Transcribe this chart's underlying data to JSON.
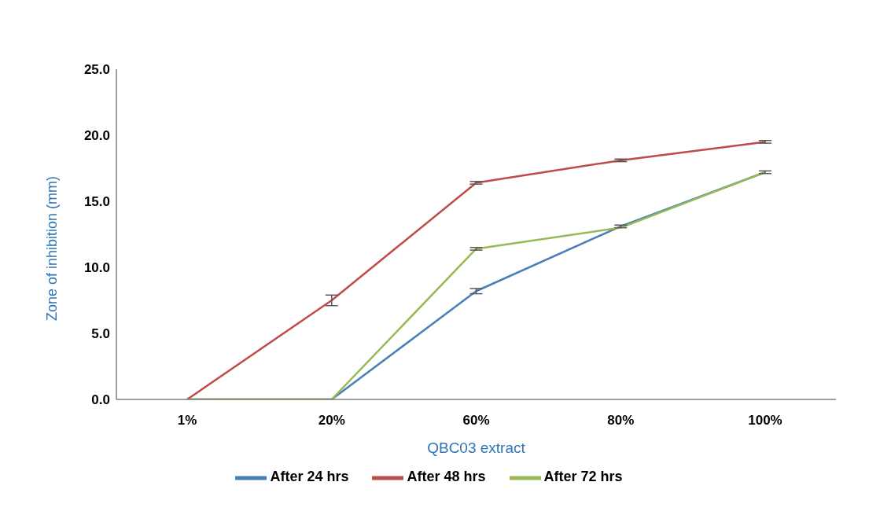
{
  "chart_data": {
    "type": "line",
    "xlabel": "QBC03 extract",
    "ylabel": "Zone of inhibition (mm)",
    "categories": [
      "1%",
      "20%",
      "60%",
      "80%",
      "100%"
    ],
    "series": [
      {
        "name": "After 24 hrs",
        "color": "#4a7ebb",
        "values": [
          0,
          0,
          8.2,
          13.1,
          17.2
        ],
        "errors": [
          null,
          null,
          0.2,
          0.1,
          null
        ]
      },
      {
        "name": "After 48 hrs",
        "color": "#be4b48",
        "values": [
          0,
          7.5,
          16.4,
          18.1,
          19.5
        ],
        "errors": [
          null,
          0.4,
          0.1,
          0.1,
          0.1
        ]
      },
      {
        "name": "After 72 hrs",
        "color": "#98b954",
        "values": [
          0,
          0,
          11.4,
          13.0,
          17.2
        ],
        "errors": [
          null,
          null,
          0.1,
          null,
          0.1
        ]
      }
    ],
    "ylim": [
      0,
      25
    ],
    "yticks": [
      {
        "value": 0,
        "label": "0.0"
      },
      {
        "value": 5,
        "label": "5.0"
      },
      {
        "value": 10,
        "label": "10.0"
      },
      {
        "value": 15,
        "label": "15.0"
      },
      {
        "value": 20,
        "label": "20.0"
      },
      {
        "value": 25,
        "label": "25.0"
      }
    ],
    "grid": false,
    "legend": "bottom",
    "marker": "none",
    "line_style": "solid"
  }
}
